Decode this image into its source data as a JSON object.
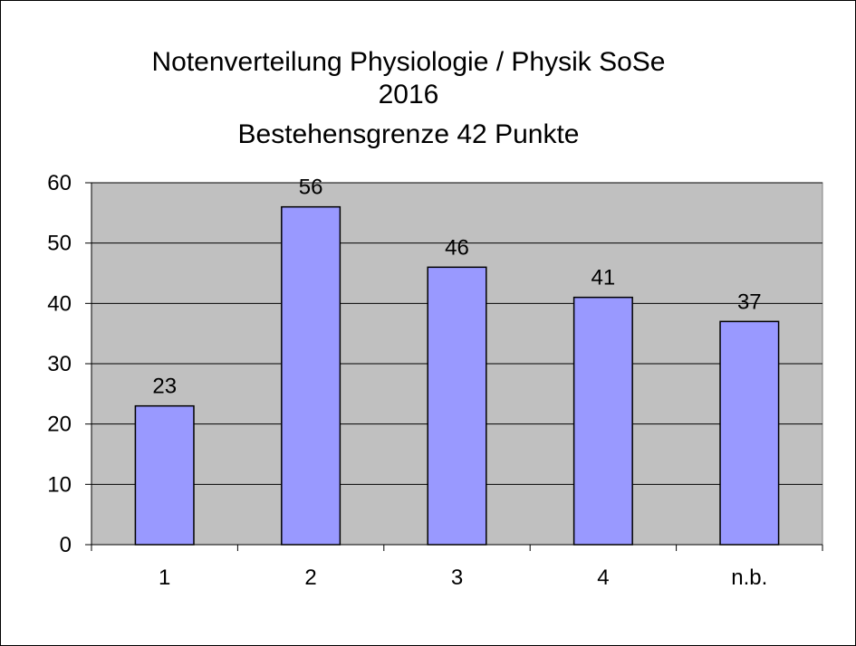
{
  "chart_data": {
    "type": "bar",
    "title": [
      "Notenverteilung Physiologie / Physik SoSe",
      "2016",
      "Bestehensgrenze 42 Punkte"
    ],
    "categories": [
      "1",
      "2",
      "3",
      "4",
      "n.b."
    ],
    "values": [
      23,
      56,
      46,
      41,
      37
    ],
    "xlabel": "",
    "ylabel": "",
    "ylim": [
      0,
      60
    ],
    "yticks": [
      0,
      10,
      20,
      30,
      40,
      50,
      60
    ],
    "grid": true,
    "legend": "none",
    "data_labels": true,
    "colors": {
      "bar_fill": "#9999ff",
      "plot_background": "#c0c0c0",
      "gridline": "#000000"
    }
  }
}
